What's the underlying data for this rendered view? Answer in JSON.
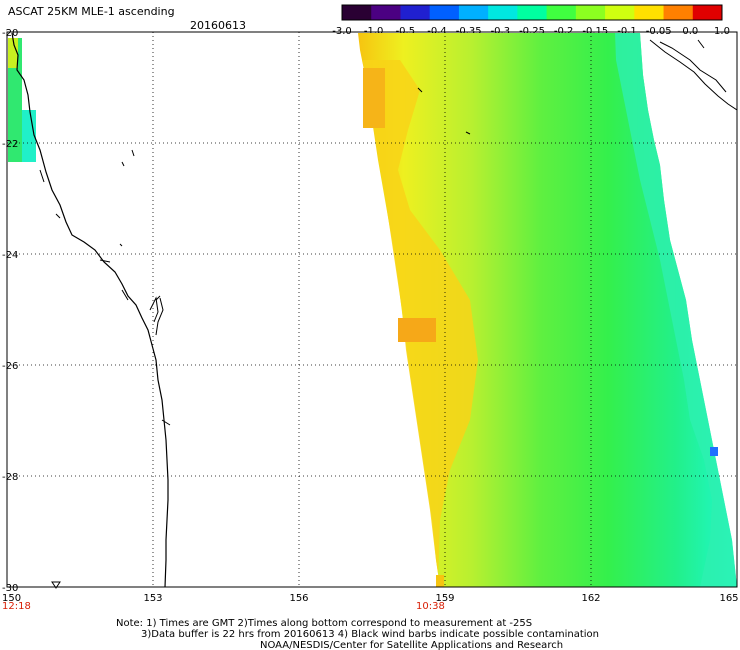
{
  "header": {
    "title": "ASCAT 25KM MLE-1 ascending",
    "date": "20160613"
  },
  "chart_data": {
    "type": "heatmap",
    "title": "ASCAT 25KM MLE-1 ascending",
    "subtitle": "20160613",
    "x_ticks": [
      "150",
      "153",
      "156",
      "159",
      "162",
      "165"
    ],
    "y_ticks": [
      "-20",
      "-22",
      "-24",
      "-26",
      "-28",
      "-30"
    ],
    "xlim": [
      150,
      165
    ],
    "ylim": [
      -30,
      -20
    ],
    "grid": true,
    "colorbar": {
      "labels": [
        "-3.0",
        "-1.0",
        "-0.5",
        "-0.4",
        "-0.35",
        "-0.3",
        "-0.25",
        "-0.2",
        "-0.15",
        "-0.1",
        "-0.05",
        "0.0",
        "1.0"
      ],
      "colors": [
        "#2a0033",
        "#4b0082",
        "#2020d0",
        "#0060ff",
        "#00b0ff",
        "#00e8e0",
        "#00ffa0",
        "#40ff40",
        "#8cff20",
        "#d0ff10",
        "#ffe000",
        "#ff8000",
        "#e00000"
      ]
    },
    "time_labels": [
      "12:18",
      "10:38"
    ],
    "time_label_color": "#d81e05",
    "swath": {
      "description_colors": [
        "#30f060",
        "#60f040",
        "#f8f020",
        "#ffc800",
        "#20ffd0"
      ]
    }
  },
  "footer": {
    "note1": "Note: 1) Times are GMT 2)Times along bottom correspond to measurement at -25S",
    "note2": "3)Data buffer is 22 hrs from 20160613 4) Black wind barbs indicate possible contamination",
    "note3": "NOAA/NESDIS/Center for Satellite Applications and Research"
  }
}
